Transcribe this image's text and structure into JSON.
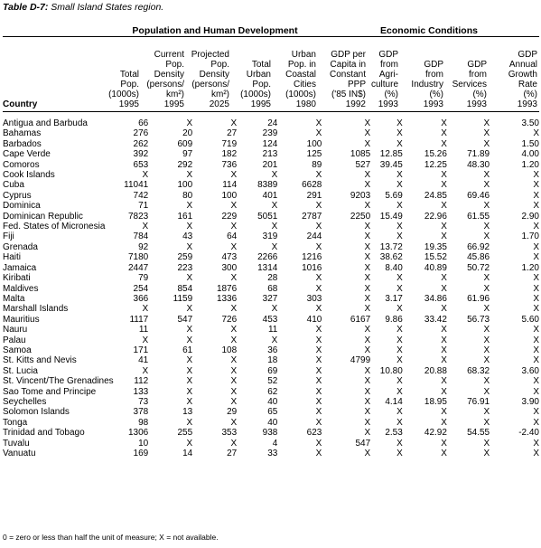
{
  "caption": {
    "label": "Table D-7:",
    "title": "Small Island States region."
  },
  "groups": {
    "population": "Population and Human Development",
    "economic": "Economic Conditions"
  },
  "headers": [
    "Country",
    "Total\nPop.\n(1000s)\n1995",
    "Current\nPop.\nDensity\n(persons/\nkm²)\n1995",
    "Projected\nPop.\nDensity\n(persons/\nkm²)\n2025",
    "Total\nUrban\nPop.\n(1000s)\n1995",
    "Urban\nPop. in\nCoastal\nCities\n(1000s)\n1980",
    "GDP per\nCapita in\nConstant\nPPP\n('85 IN$)\n1992",
    "GDP\nfrom\nAgri-\nculture\n(%)\n1993",
    "GDP\nfrom\nIndustry\n(%)\n1993",
    "GDP\nfrom\nServices\n(%)\n1993",
    "GDP\nAnnual\nGrowth\nRate\n(%)\n1993"
  ],
  "rows": [
    [
      "Antigua and Barbuda",
      "66",
      "X",
      "X",
      "24",
      "X",
      "X",
      "X",
      "X",
      "X",
      "3.50"
    ],
    [
      "Bahamas",
      "276",
      "20",
      "27",
      "239",
      "X",
      "X",
      "X",
      "X",
      "X",
      "X"
    ],
    [
      "Barbados",
      "262",
      "609",
      "719",
      "124",
      "100",
      "X",
      "X",
      "X",
      "X",
      "1.50"
    ],
    [
      "Cape Verde",
      "392",
      "97",
      "182",
      "213",
      "125",
      "1085",
      "12.85",
      "15.26",
      "71.89",
      "4.00"
    ],
    [
      "Comoros",
      "653",
      "292",
      "736",
      "201",
      "89",
      "527",
      "39.45",
      "12.25",
      "48.30",
      "1.20"
    ],
    [
      "Cook Islands",
      "X",
      "X",
      "X",
      "X",
      "X",
      "X",
      "X",
      "X",
      "X",
      "X"
    ],
    [
      "Cuba",
      "11041",
      "100",
      "114",
      "8389",
      "6628",
      "X",
      "X",
      "X",
      "X",
      "X"
    ],
    [
      "Cyprus",
      "742",
      "80",
      "100",
      "401",
      "291",
      "9203",
      "5.69",
      "24.85",
      "69.46",
      "X"
    ],
    [
      "Dominica",
      "71",
      "X",
      "X",
      "X",
      "X",
      "X",
      "X",
      "X",
      "X",
      "X"
    ],
    [
      "Dominican Republic",
      "7823",
      "161",
      "229",
      "5051",
      "2787",
      "2250",
      "15.49",
      "22.96",
      "61.55",
      "2.90"
    ],
    [
      "Fed. States of Micronesia",
      "X",
      "X",
      "X",
      "X",
      "X",
      "X",
      "X",
      "X",
      "X",
      "X"
    ],
    [
      "Fiji",
      "784",
      "43",
      "64",
      "319",
      "244",
      "X",
      "X",
      "X",
      "X",
      "1.70"
    ],
    [
      "Grenada",
      "92",
      "X",
      "X",
      "X",
      "X",
      "X",
      "13.72",
      "19.35",
      "66.92",
      "X"
    ],
    [
      "Haiti",
      "7180",
      "259",
      "473",
      "2266",
      "1216",
      "X",
      "38.62",
      "15.52",
      "45.86",
      "X"
    ],
    [
      "Jamaica",
      "2447",
      "223",
      "300",
      "1314",
      "1016",
      "X",
      "8.40",
      "40.89",
      "50.72",
      "1.20"
    ],
    [
      "Kiribati",
      "79",
      "X",
      "X",
      "28",
      "X",
      "X",
      "X",
      "X",
      "X",
      "X"
    ],
    [
      "Maldives",
      "254",
      "854",
      "1876",
      "68",
      "X",
      "X",
      "X",
      "X",
      "X",
      "X"
    ],
    [
      "Malta",
      "366",
      "1159",
      "1336",
      "327",
      "303",
      "X",
      "3.17",
      "34.86",
      "61.96",
      "X"
    ],
    [
      "Marshall Islands",
      "X",
      "X",
      "X",
      "X",
      "X",
      "X",
      "X",
      "X",
      "X",
      "X"
    ],
    [
      "Mauritius",
      "1117",
      "547",
      "726",
      "453",
      "410",
      "6167",
      "9.86",
      "33.42",
      "56.73",
      "5.60"
    ],
    [
      "Nauru",
      "11",
      "X",
      "X",
      "11",
      "X",
      "X",
      "X",
      "X",
      "X",
      "X"
    ],
    [
      "Palau",
      "X",
      "X",
      "X",
      "X",
      "X",
      "X",
      "X",
      "X",
      "X",
      "X"
    ],
    [
      "Samoa",
      "171",
      "61",
      "108",
      "36",
      "X",
      "X",
      "X",
      "X",
      "X",
      "X"
    ],
    [
      "St. Kitts and Nevis",
      "41",
      "X",
      "X",
      "18",
      "X",
      "4799",
      "X",
      "X",
      "X",
      "X"
    ],
    [
      "St. Lucia",
      "X",
      "X",
      "X",
      "69",
      "X",
      "X",
      "10.80",
      "20.88",
      "68.32",
      "3.60"
    ],
    [
      "St. Vincent/The Grenadines",
      "112",
      "X",
      "X",
      "52",
      "X",
      "X",
      "X",
      "X",
      "X",
      "X"
    ],
    [
      "Sao Tome and Principe",
      "133",
      "X",
      "X",
      "62",
      "X",
      "X",
      "X",
      "X",
      "X",
      "X"
    ],
    [
      "Seychelles",
      "73",
      "X",
      "X",
      "40",
      "X",
      "X",
      "4.14",
      "18.95",
      "76.91",
      "3.90"
    ],
    [
      "Solomon Islands",
      "378",
      "13",
      "29",
      "65",
      "X",
      "X",
      "X",
      "X",
      "X",
      "X"
    ],
    [
      "Tonga",
      "98",
      "X",
      "X",
      "40",
      "X",
      "X",
      "X",
      "X",
      "X",
      "X"
    ],
    [
      "Trinidad and Tobago",
      "1306",
      "255",
      "353",
      "938",
      "623",
      "X",
      "2.53",
      "42.92",
      "54.55",
      "-2.40"
    ],
    [
      "Tuvalu",
      "10",
      "X",
      "X",
      "4",
      "X",
      "547",
      "X",
      "X",
      "X",
      "X"
    ],
    [
      "Vanuatu",
      "169",
      "14",
      "27",
      "33",
      "X",
      "X",
      "X",
      "X",
      "X",
      "X"
    ]
  ],
  "footnote": "0 = zero or less than half the unit of measure; X = not available."
}
